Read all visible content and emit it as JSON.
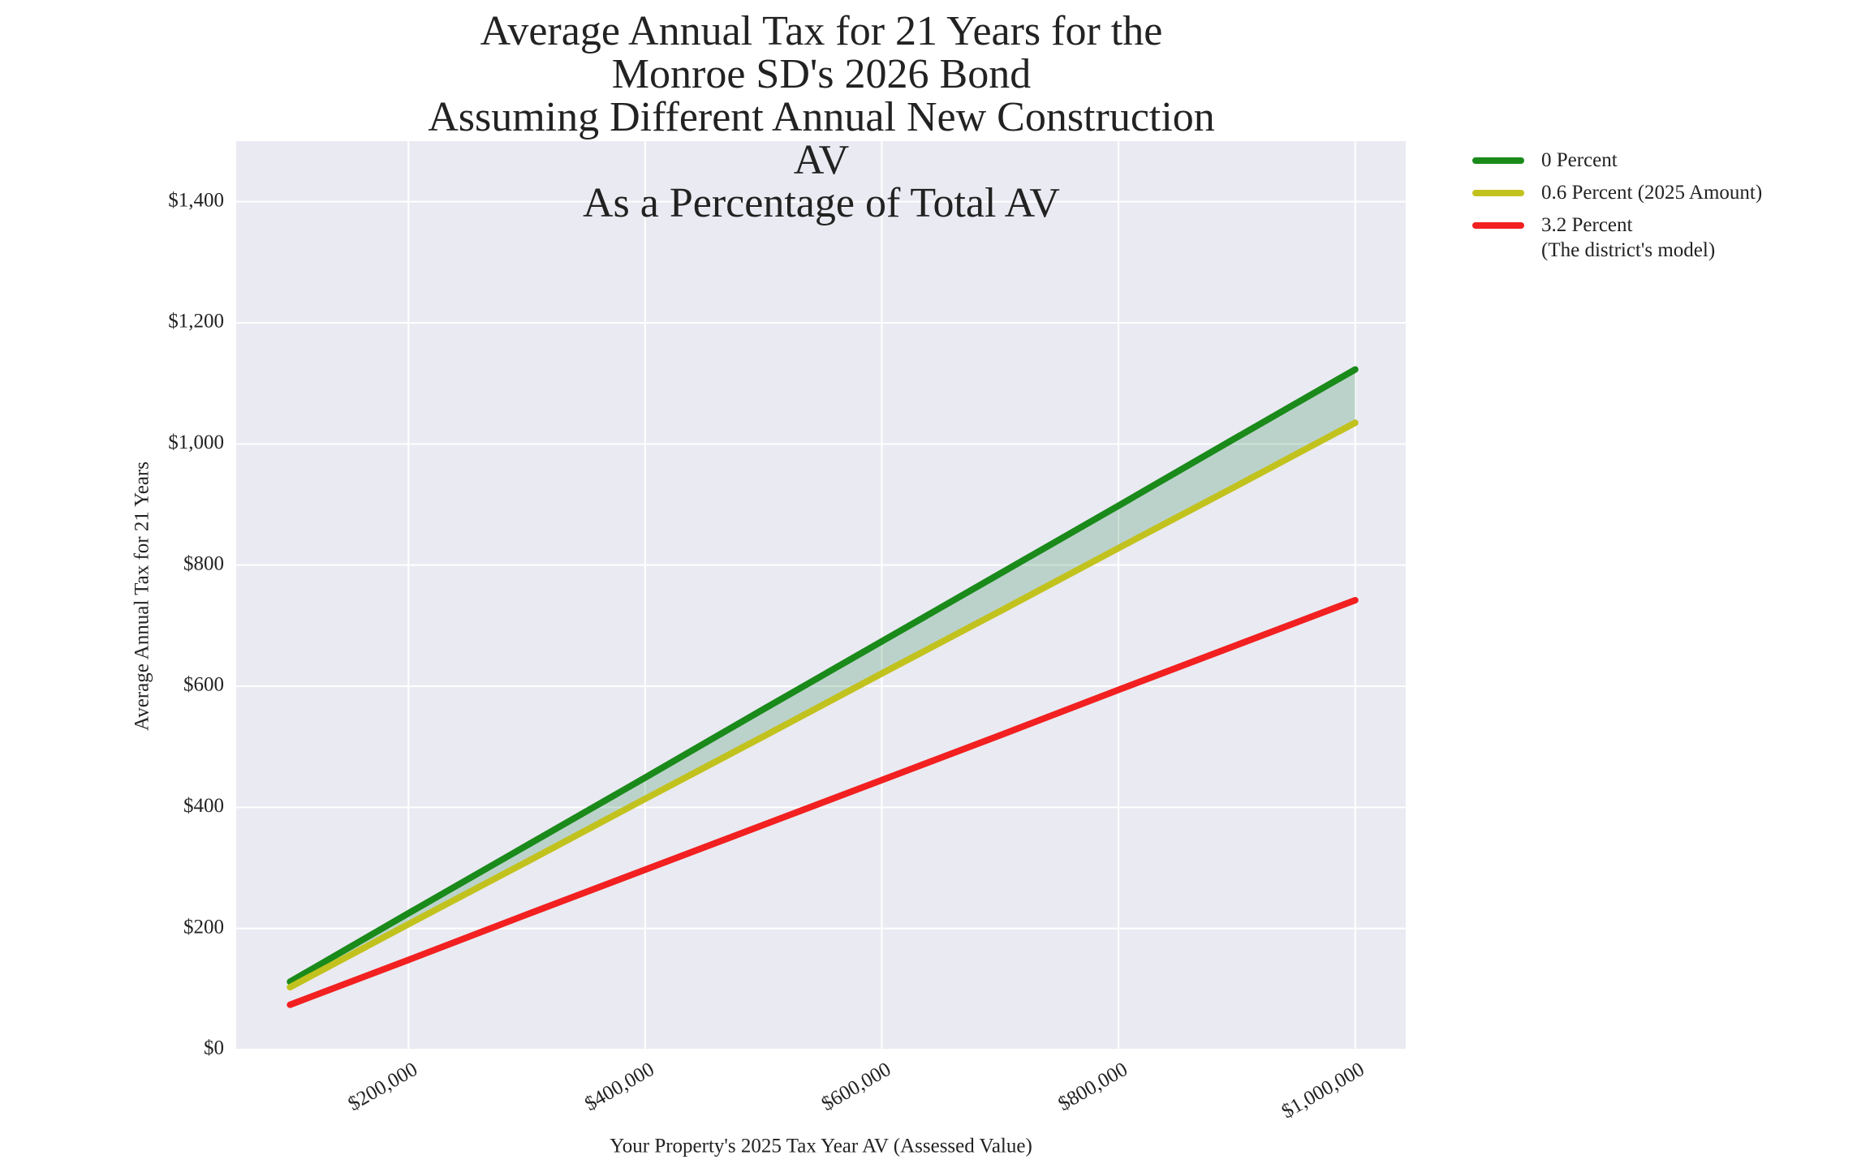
{
  "chart_data": {
    "type": "line",
    "title": "Average Annual Tax for 21 Years for the Monroe SD's 2026 Bond\nAssuming Different Annual New Construction AV\nAs a Percentage of Total AV",
    "x_label": "Your Property's 2025 Tax Year AV (Assessed Value)",
    "y_label": "Average Annual Tax for 21 Years",
    "x": [
      100000,
      200000,
      300000,
      400000,
      500000,
      600000,
      700000,
      800000,
      900000,
      1000000
    ],
    "series": [
      {
        "name": "0 Percent",
        "color": "#1a8a1a",
        "values": [
          112,
          225,
          337,
          449,
          562,
          674,
          786,
          898,
          1011,
          1123
        ]
      },
      {
        "name": "0.6 Percent (2025 Amount)",
        "color": "#c2c21e",
        "values": [
          103,
          207,
          310,
          414,
          517,
          621,
          724,
          828,
          931,
          1035
        ]
      },
      {
        "name": "3.2 Percent\n(The district's model)",
        "color": "#f22020",
        "values": [
          74,
          148,
          223,
          297,
          371,
          445,
          519,
          594,
          668,
          742
        ]
      }
    ],
    "fill_between": [
      0,
      1
    ],
    "fill_color": "#2e8b57",
    "xlim": [
      54500,
      1042700
    ],
    "xticks": [
      {
        "value": 200000,
        "label": "$200,000"
      },
      {
        "value": 400000,
        "label": "$400,000"
      },
      {
        "value": 600000,
        "label": "$600,000"
      },
      {
        "value": 800000,
        "label": "$800,000"
      },
      {
        "value": 1000000,
        "label": "$1,000,000"
      }
    ],
    "ylim": [
      0,
      1500
    ],
    "yticks": [
      {
        "value": 0,
        "label": "$0"
      },
      {
        "value": 200,
        "label": "$200"
      },
      {
        "value": 400,
        "label": "$400"
      },
      {
        "value": 600,
        "label": "$600"
      },
      {
        "value": 800,
        "label": "$800"
      },
      {
        "value": 1000,
        "label": "$1,000"
      },
      {
        "value": 1200,
        "label": "$1,200"
      },
      {
        "value": 1400,
        "label": "$1,400"
      }
    ],
    "grid": true,
    "legend": "outside-right"
  }
}
